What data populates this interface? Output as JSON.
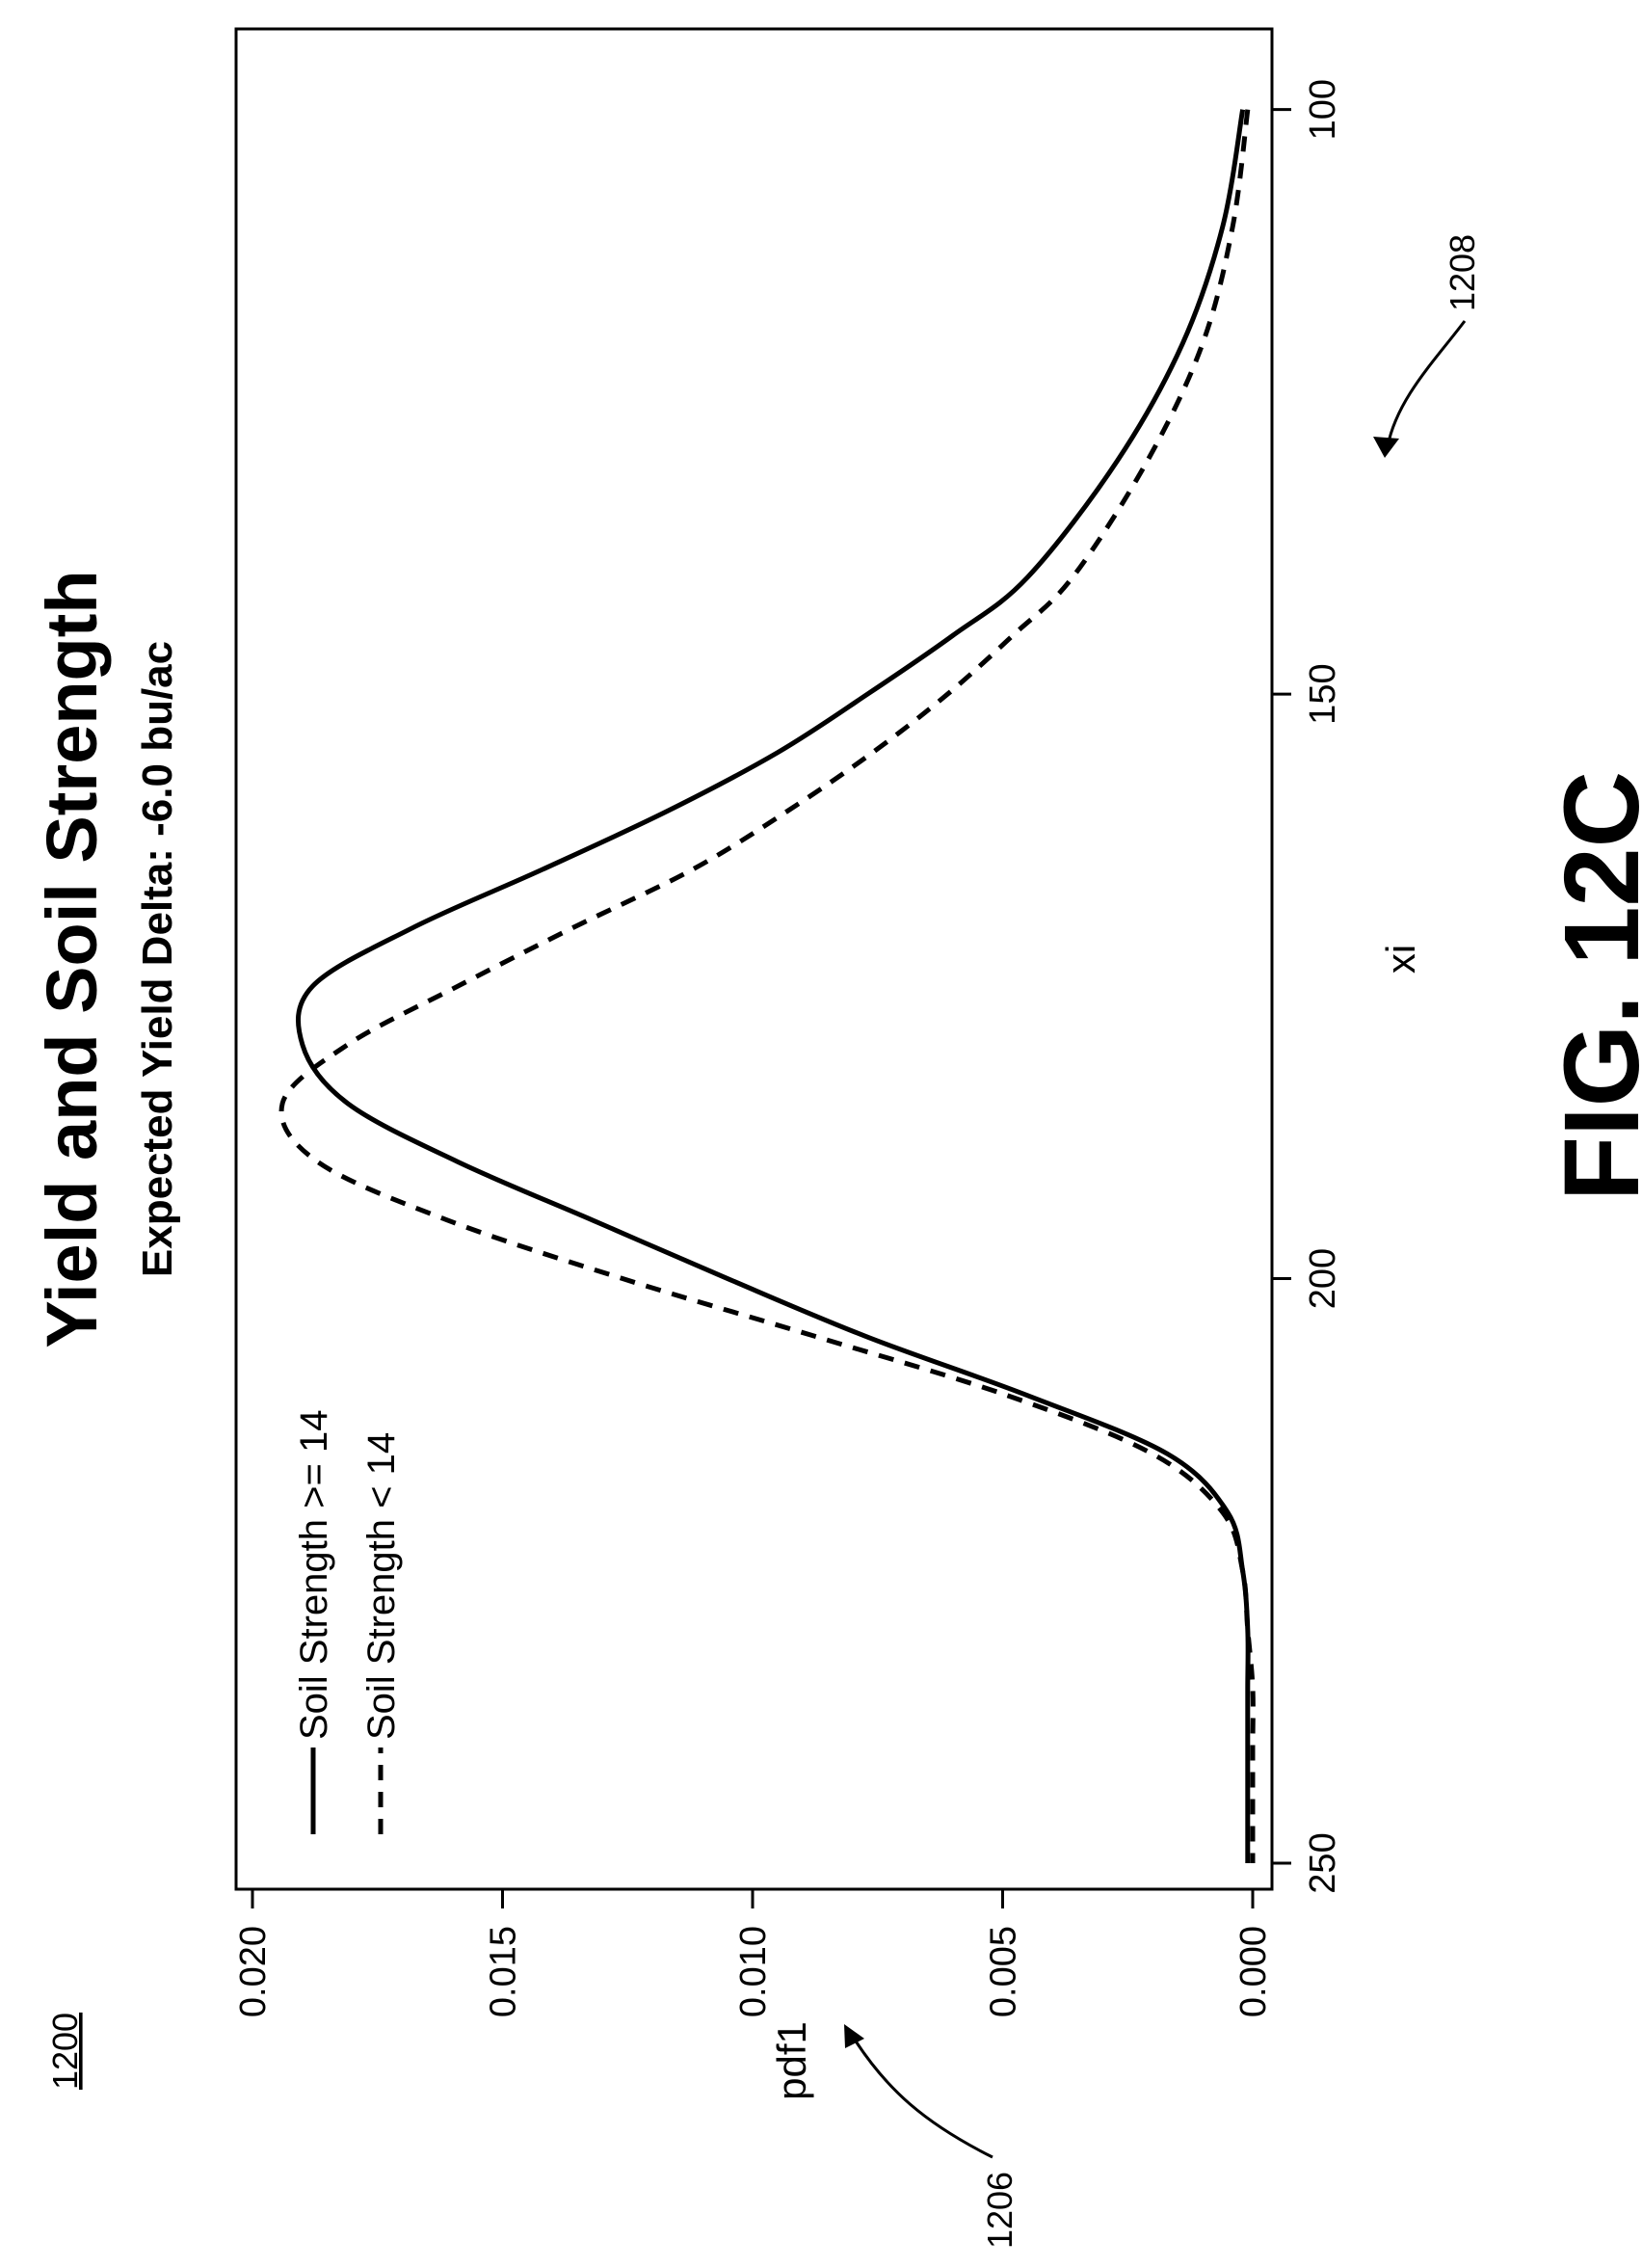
{
  "figure": {
    "ref_number": "1200",
    "fig_label": "FIG. 12C",
    "callout_y": "1206",
    "callout_x": "1208"
  },
  "chart_data": {
    "type": "line",
    "title": "Yield and Soil Strength",
    "subtitle": "Expected Yield Delta: -6.0 bu/ac",
    "xlabel": "xi",
    "ylabel": "pdf1",
    "xlim": [
      95,
      250
    ],
    "ylim": [
      0.0,
      0.02
    ],
    "x_ticks": [
      "100",
      "150",
      "200",
      "250"
    ],
    "y_ticks": [
      "0.000",
      "0.005",
      "0.010",
      "0.015",
      "0.020"
    ],
    "legend_position": "top-left",
    "series": [
      {
        "name": "Soil Strength >= 14",
        "style": "solid",
        "color": "#000000",
        "x": [
          100,
          110,
          120,
          130,
          140,
          145,
          150,
          155,
          160,
          165,
          170,
          175,
          180,
          185,
          190,
          195,
          200,
          205,
          210,
          215,
          220,
          225,
          230,
          235,
          240,
          245,
          250
        ],
        "y": [
          0.0002,
          0.0006,
          0.0014,
          0.0027,
          0.0045,
          0.006,
          0.0077,
          0.0095,
          0.0117,
          0.0142,
          0.0168,
          0.0188,
          0.019,
          0.0181,
          0.0159,
          0.0132,
          0.0105,
          0.0077,
          0.0045,
          0.0017,
          0.0005,
          0.0002,
          0.0001,
          0.0001,
          0.0001,
          0.0001,
          0.0001
        ]
      },
      {
        "name": "Soil Strength < 14",
        "style": "dashed",
        "color": "#000000",
        "x": [
          100,
          110,
          120,
          130,
          140,
          145,
          150,
          155,
          160,
          165,
          170,
          175,
          180,
          185,
          190,
          195,
          200,
          205,
          210,
          215,
          220,
          225,
          230,
          235,
          240,
          245,
          250
        ],
        "y": [
          0.0001,
          0.0004,
          0.001,
          0.0021,
          0.0036,
          0.0048,
          0.0061,
          0.0076,
          0.0093,
          0.0112,
          0.0136,
          0.0159,
          0.0181,
          0.0194,
          0.0187,
          0.0161,
          0.0126,
          0.0087,
          0.0049,
          0.002,
          0.0006,
          0.0002,
          0.0001,
          0.0,
          0.0,
          0.0,
          0.0
        ]
      }
    ]
  }
}
